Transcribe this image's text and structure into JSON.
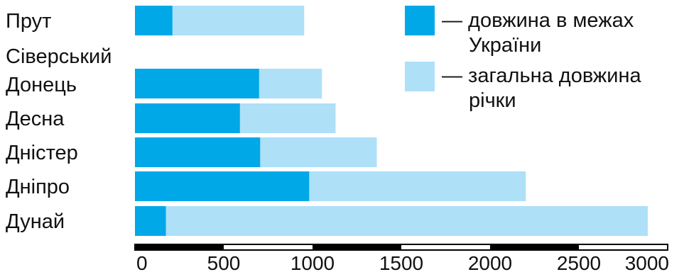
{
  "chart_data": {
    "type": "bar",
    "orientation": "horizontal",
    "categories": [
      [
        "Прут"
      ],
      [
        "Сіверський",
        "Донець"
      ],
      [
        "Десна"
      ],
      [
        "Дністер"
      ],
      [
        "Дніпро"
      ],
      [
        "Дунай"
      ]
    ],
    "series": [
      {
        "name": "— загальна довжина річки",
        "legend_lines": [
          "— загальна довжина",
          "річки"
        ],
        "color": "#aee0f8",
        "values": [
          953,
          1053,
          1130,
          1362,
          2201,
          2888
        ]
      },
      {
        "name": "— довжина в межах України",
        "legend_lines": [
          "— довжина в межах",
          "України"
        ],
        "color": "#00a8e8",
        "values": [
          211,
          699,
          591,
          705,
          981,
          174
        ]
      }
    ],
    "xlim": [
      0,
      3000
    ],
    "xticks": [
      0,
      500,
      1000,
      1500,
      2000,
      2500,
      3000
    ],
    "legend_position": "top-right",
    "grid": false
  }
}
